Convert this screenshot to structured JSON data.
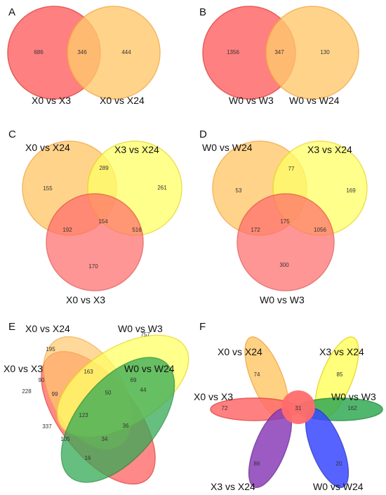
{
  "colors": {
    "red": "#ff6b6b",
    "red_stroke": "#e0433f",
    "orange": "#ffc96e",
    "orange_stroke": "#f2a640",
    "yellow": "#ffff66",
    "yellow_stroke": "#e9d71e",
    "green": "#33aa55",
    "green_stroke": "#1f8a38",
    "blue": "#3a48ff",
    "blue_stroke": "#2a36c8",
    "purple": "#8a3fb8",
    "purple_stroke": "#6e2d96"
  },
  "panels": {
    "A": {
      "letter": "A",
      "sets": [
        "X0 vs X3",
        "X0 vs X24"
      ],
      "counts": {
        "only_first": "686",
        "both": "346",
        "only_second": "444"
      }
    },
    "B": {
      "letter": "B",
      "sets": [
        "W0 vs W3",
        "W0 vs W24"
      ],
      "counts": {
        "only_first": "1356",
        "both": "347",
        "only_second": "130"
      }
    },
    "C": {
      "letter": "C",
      "sets": [
        "X0 vs X24",
        "X3 vs X24",
        "X0 vs X3"
      ],
      "counts": {
        "a": "155",
        "ab": "289",
        "b": "261",
        "ac": "192",
        "abc": "154",
        "bc": "516",
        "c": "170"
      }
    },
    "D": {
      "letter": "D",
      "sets": [
        "W0 vs W24",
        "X3 vs X24",
        "W0 vs W3"
      ],
      "counts": {
        "a": "53",
        "ab": "77",
        "b": "169",
        "ac": "172",
        "abc": "175",
        "bc": "1056",
        "c": "300"
      }
    },
    "E": {
      "letter": "E",
      "sets": [
        "X0 vs X24",
        "W0 vs W3",
        "X0 vs X3",
        "W0 vs W24"
      ],
      "counts": [
        "195",
        "757",
        "90",
        "163",
        "69",
        "44",
        "228",
        "99",
        "50",
        "123",
        "337",
        "105",
        "34",
        "36",
        "16"
      ]
    },
    "F": {
      "letter": "F",
      "sets": [
        "X0 vs X24",
        "X3 vs X24",
        "X0 vs X3",
        "W0 vs W3",
        "X3 vs X24",
        "W0 vs W24"
      ],
      "counts": {
        "top_left": "74",
        "top_right": "85",
        "left": "72",
        "center": "31",
        "right": "162",
        "bottom_left": "86",
        "bottom_right": "20"
      }
    }
  }
}
